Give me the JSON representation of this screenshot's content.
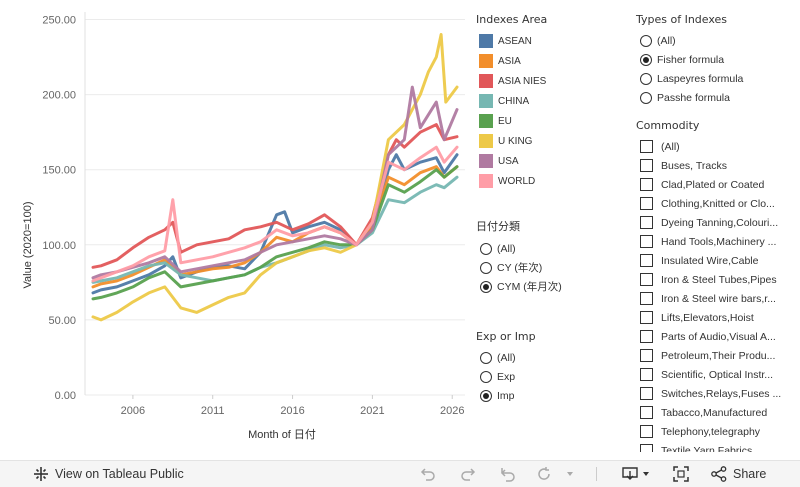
{
  "chart_data": {
    "type": "line",
    "title": "",
    "xlabel": "Month of 日付",
    "ylabel": "Value (2020=100)",
    "xlim": [
      2003.0,
      2026.8
    ],
    "ylim": [
      0,
      255
    ],
    "x_ticks": [
      "2006",
      "2011",
      "2016",
      "2021",
      "2026"
    ],
    "y_ticks": [
      "0.00",
      "50.00",
      "100.00",
      "150.00",
      "200.00",
      "250.00"
    ],
    "series": [
      {
        "name": "ASEAN",
        "color": "#4e79a7",
        "x": [
          2003.5,
          2004,
          2005,
          2006,
          2007,
          2008,
          2008.5,
          2009,
          2010,
          2011,
          2012,
          2013,
          2014,
          2015,
          2015.5,
          2016,
          2017,
          2018,
          2019,
          2020,
          2021,
          2021.5,
          2022,
          2022.5,
          2023,
          2024,
          2025,
          2025.5,
          2026.3
        ],
        "y": [
          68,
          70,
          72,
          76,
          80,
          86,
          92,
          78,
          82,
          85,
          86,
          84,
          95,
          120,
          122,
          108,
          112,
          115,
          110,
          100,
          112,
          130,
          150,
          160,
          150,
          155,
          158,
          148,
          160
        ]
      },
      {
        "name": "ASIA",
        "color": "#f28e2b",
        "x": [
          2003.5,
          2004,
          2005,
          2006,
          2007,
          2008,
          2009,
          2010,
          2011,
          2012,
          2013,
          2014,
          2015,
          2016,
          2017,
          2018,
          2019,
          2020,
          2021,
          2022,
          2023,
          2024,
          2025,
          2025.5,
          2026.3
        ],
        "y": [
          72,
          74,
          76,
          80,
          85,
          90,
          80,
          82,
          84,
          85,
          88,
          95,
          105,
          102,
          108,
          112,
          108,
          100,
          112,
          145,
          140,
          148,
          152,
          145,
          152
        ]
      },
      {
        "name": "ASIA NIES",
        "color": "#e15759",
        "x": [
          2003.5,
          2004,
          2005,
          2006,
          2007,
          2008,
          2008.5,
          2009,
          2010,
          2011,
          2012,
          2013,
          2014,
          2015,
          2016,
          2017,
          2018,
          2019,
          2020,
          2021,
          2022,
          2022.5,
          2023,
          2024,
          2025,
          2025.5,
          2026.3
        ],
        "y": [
          85,
          86,
          90,
          98,
          105,
          110,
          115,
          95,
          100,
          102,
          104,
          110,
          112,
          115,
          110,
          114,
          120,
          112,
          100,
          118,
          160,
          170,
          165,
          175,
          180,
          170,
          172
        ]
      },
      {
        "name": "CHINA",
        "color": "#76b7b2",
        "x": [
          2003.5,
          2004,
          2005,
          2006,
          2007,
          2008,
          2009,
          2010,
          2011,
          2012,
          2013,
          2014,
          2015,
          2016,
          2017,
          2018,
          2019,
          2020,
          2021,
          2022,
          2023,
          2024,
          2025,
          2025.5,
          2026.3
        ],
        "y": [
          75,
          76,
          78,
          82,
          86,
          88,
          80,
          78,
          76,
          78,
          80,
          85,
          88,
          92,
          96,
          100,
          98,
          100,
          108,
          130,
          128,
          135,
          140,
          138,
          145
        ]
      },
      {
        "name": "EU",
        "color": "#59a14f",
        "x": [
          2003.5,
          2004,
          2005,
          2006,
          2007,
          2008,
          2009,
          2010,
          2011,
          2012,
          2013,
          2014,
          2015,
          2016,
          2017,
          2018,
          2019,
          2020,
          2021,
          2022,
          2023,
          2024,
          2025,
          2025.5,
          2026.3
        ],
        "y": [
          64,
          65,
          68,
          72,
          78,
          82,
          72,
          74,
          76,
          78,
          80,
          85,
          92,
          95,
          98,
          102,
          100,
          100,
          110,
          140,
          135,
          142,
          150,
          145,
          152
        ]
      },
      {
        "name": "U KING",
        "color": "#edc948",
        "x": [
          2003.5,
          2004,
          2005,
          2006,
          2007,
          2008,
          2009,
          2010,
          2011,
          2012,
          2013,
          2014,
          2015,
          2016,
          2017,
          2018,
          2019,
          2020,
          2021,
          2022,
          2023,
          2024,
          2024.5,
          2025,
          2025.3,
          2025.6,
          2026.3
        ],
        "y": [
          52,
          50,
          55,
          62,
          68,
          72,
          58,
          55,
          60,
          65,
          68,
          80,
          88,
          92,
          96,
          98,
          95,
          100,
          115,
          170,
          180,
          200,
          215,
          225,
          240,
          195,
          205
        ]
      },
      {
        "name": "USA",
        "color": "#b07aa1",
        "x": [
          2003.5,
          2004,
          2005,
          2006,
          2007,
          2008,
          2009,
          2010,
          2011,
          2012,
          2013,
          2014,
          2015,
          2016,
          2017,
          2018,
          2019,
          2020,
          2021,
          2022,
          2023,
          2023.5,
          2024,
          2025,
          2025.5,
          2026.3
        ],
        "y": [
          78,
          80,
          82,
          85,
          88,
          92,
          82,
          84,
          86,
          88,
          90,
          95,
          100,
          102,
          104,
          106,
          104,
          100,
          110,
          160,
          170,
          205,
          178,
          195,
          170,
          190
        ]
      },
      {
        "name": "WORLD",
        "color": "#ff9da7",
        "x": [
          2003.5,
          2004,
          2005,
          2006,
          2007,
          2008,
          2008.5,
          2009,
          2010,
          2011,
          2012,
          2013,
          2014,
          2015,
          2016,
          2017,
          2018,
          2019,
          2020,
          2021,
          2022,
          2023,
          2024,
          2025,
          2025.5,
          2026.3
        ],
        "y": [
          76,
          78,
          82,
          86,
          92,
          96,
          130,
          88,
          90,
          92,
          95,
          98,
          102,
          110,
          106,
          108,
          112,
          108,
          100,
          115,
          155,
          150,
          158,
          165,
          155,
          165
        ]
      }
    ]
  },
  "legend": {
    "title": "Indexes Area",
    "items": [
      {
        "label": "ASEAN",
        "color": "#4e79a7"
      },
      {
        "label": "ASIA",
        "color": "#f28e2b"
      },
      {
        "label": "ASIA NIES",
        "color": "#e15759"
      },
      {
        "label": "CHINA",
        "color": "#76b7b2"
      },
      {
        "label": "EU",
        "color": "#59a14f"
      },
      {
        "label": "U KING",
        "color": "#edc948"
      },
      {
        "label": "USA",
        "color": "#b07aa1"
      },
      {
        "label": "WORLD",
        "color": "#ff9da7"
      }
    ]
  },
  "date_filter": {
    "title": "日付分類",
    "options": [
      {
        "label": "(All)",
        "checked": false
      },
      {
        "label": "CY (年次)",
        "checked": false
      },
      {
        "label": "CYM (年月次)",
        "checked": true
      }
    ]
  },
  "exp_filter": {
    "title": "Exp or Imp",
    "options": [
      {
        "label": "(All)",
        "checked": false
      },
      {
        "label": "Exp",
        "checked": false
      },
      {
        "label": "Imp",
        "checked": true
      }
    ]
  },
  "types_filter": {
    "title": "Types of Indexes",
    "options": [
      {
        "label": "(All)",
        "checked": false
      },
      {
        "label": "Fisher formula",
        "checked": true
      },
      {
        "label": "Laspeyres formula",
        "checked": false
      },
      {
        "label": "Passhe formula",
        "checked": false
      }
    ]
  },
  "commodity_filter": {
    "title": "Commodity",
    "items": [
      "(All)",
      "Buses, Tracks",
      "Clad,Plated or Coated",
      "Clothing,Knitted or Clo...",
      "Dyeing Tanning,Colouri...",
      "Hand Tools,Machinery ...",
      "Insulated Wire,Cable",
      "Iron & Steel Tubes,Pipes",
      "Iron & Steel wire bars,r...",
      "Lifts,Elevators,Hoist",
      "Parts of Audio,Visual A...",
      "Petroleum,Their Produ...",
      "Scientific, Optical Instr...",
      "Switches,Relays,Fuses ...",
      "Tabacco,Manufactured",
      "Telephony,telegraphy",
      "Textile Yarn,Fabrics..."
    ]
  },
  "toolbar": {
    "view_label": "View on Tableau Public",
    "share_label": "Share"
  }
}
